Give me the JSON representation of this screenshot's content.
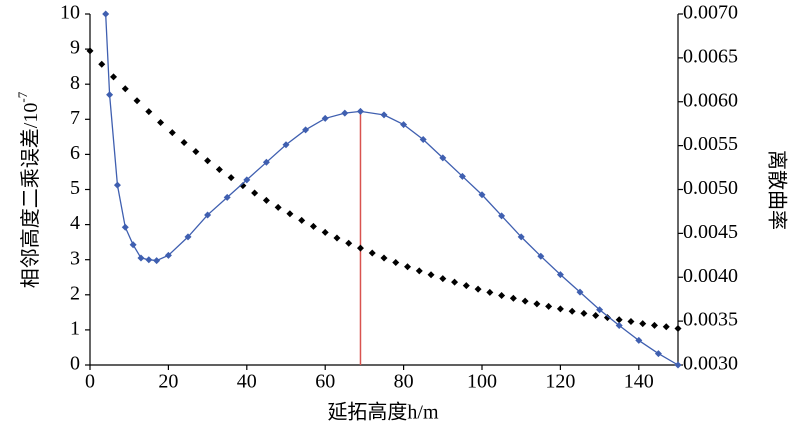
{
  "chart_data": {
    "type": "line",
    "xlabel": "延拓高度h/m",
    "ylabel": "相邻高度二乘误差/10",
    "ylabel_exponent": "-7",
    "y2label": "离散曲率",
    "xlim": [
      0,
      150
    ],
    "xticks": [
      0,
      20,
      40,
      60,
      80,
      100,
      120,
      140
    ],
    "ylim": [
      0,
      10
    ],
    "yticks": [
      0,
      1,
      2,
      3,
      4,
      5,
      6,
      7,
      8,
      9,
      10
    ],
    "y2lim": [
      0.003,
      0.007
    ],
    "y2ticks": [
      {
        "value": 0.003,
        "label": "0.0030"
      },
      0.0035,
      {
        "value": 0.004,
        "label": "0.0040"
      },
      0.0045,
      {
        "value": 0.005,
        "label": "0.0050"
      },
      0.0055,
      {
        "value": 0.006,
        "label": "0.0060"
      },
      0.0065,
      {
        "value": 0.007,
        "label": "0.0070"
      }
    ],
    "vline_x": 69,
    "vline_color": "#d9534f",
    "series": [
      {
        "color": "#000000",
        "axis": "y",
        "marker": "diamond",
        "line": false,
        "x": [
          0,
          3,
          6,
          9,
          12,
          15,
          18,
          21,
          24,
          27,
          30,
          33,
          36,
          39,
          42,
          45,
          48,
          51,
          54,
          57,
          60,
          63,
          66,
          69,
          72,
          75,
          78,
          81,
          84,
          87,
          90,
          93,
          96,
          99,
          102,
          105,
          108,
          111,
          114,
          117,
          120,
          123,
          126,
          129,
          132,
          135,
          138,
          141,
          144,
          147,
          150
        ],
        "values": [
          8.95,
          8.57,
          8.21,
          7.87,
          7.53,
          7.22,
          6.91,
          6.62,
          6.34,
          6.08,
          5.82,
          5.57,
          5.34,
          5.11,
          4.9,
          4.69,
          4.49,
          4.31,
          4.12,
          3.95,
          3.78,
          3.62,
          3.47,
          3.33,
          3.19,
          3.05,
          2.92,
          2.8,
          2.68,
          2.57,
          2.46,
          2.36,
          2.26,
          2.16,
          2.07,
          1.98,
          1.9,
          1.82,
          1.74,
          1.67,
          1.6,
          1.53,
          1.47,
          1.41,
          1.35,
          1.29,
          1.24,
          1.18,
          1.13,
          1.09,
          1.04
        ]
      },
      {
        "color": "#3f5fb0",
        "axis": "y2",
        "marker": "diamond",
        "line": true,
        "x": [
          4,
          5,
          7,
          9,
          11,
          13,
          15,
          17,
          20,
          25,
          30,
          35,
          40,
          45,
          50,
          55,
          60,
          65,
          69,
          75,
          80,
          85,
          90,
          95,
          100,
          105,
          110,
          115,
          120,
          125,
          130,
          135,
          140,
          145,
          150
        ],
        "values": [
          0.007,
          0.00608,
          0.00505,
          0.00457,
          0.00437,
          0.00422,
          0.0042,
          0.00419,
          0.00425,
          0.00446,
          0.00471,
          0.00491,
          0.00511,
          0.00531,
          0.00551,
          0.00568,
          0.00581,
          0.00587,
          0.00589,
          0.00585,
          0.00574,
          0.00557,
          0.00536,
          0.00515,
          0.00494,
          0.0047,
          0.00446,
          0.00424,
          0.00403,
          0.00383,
          0.00363,
          0.00345,
          0.00328,
          0.00313,
          0.003
        ]
      }
    ]
  }
}
